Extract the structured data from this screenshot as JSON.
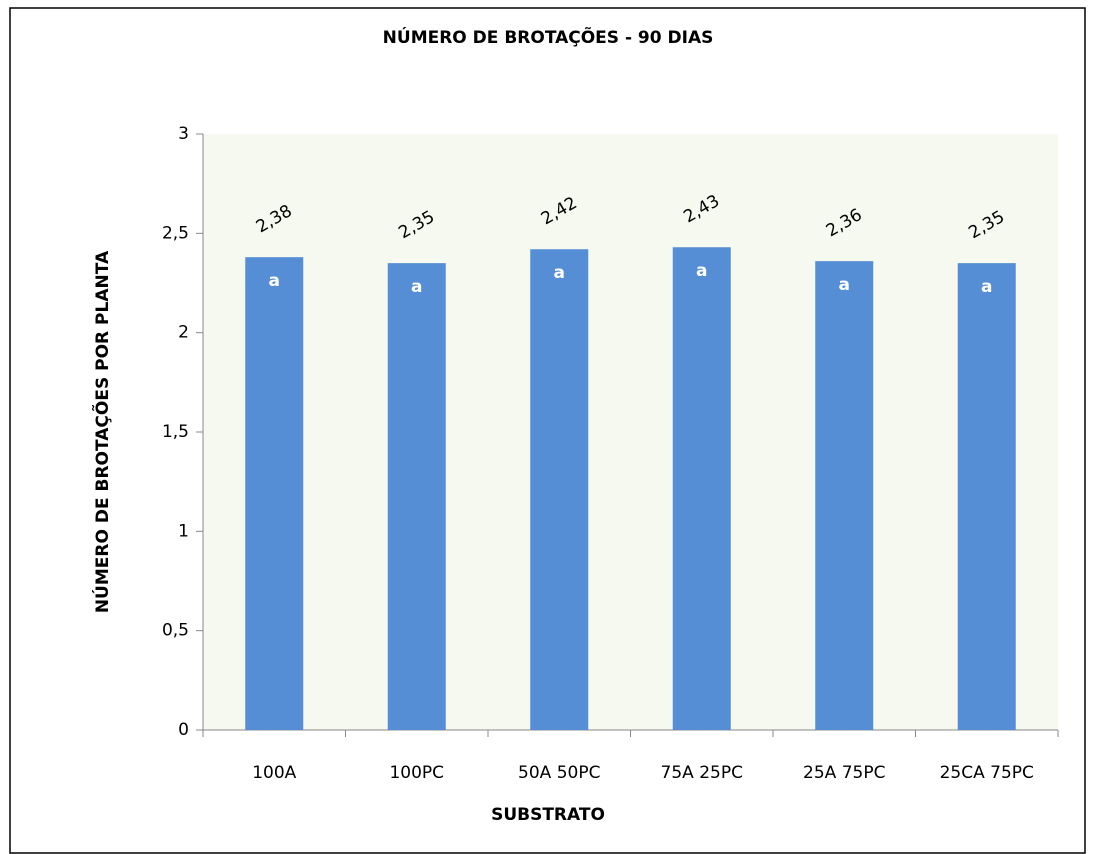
{
  "chart_data": {
    "type": "bar",
    "title": "NÚMERO DE BROTAÇÕES - 90 DIAS",
    "x_label": "SUBSTRATO",
    "y_label": "NÚMERO DE BROTAÇÕES POR PLANTA",
    "categories": [
      "100A",
      "100PC",
      "50A 50PC",
      "75A 25PC",
      "25A 75PC",
      "25CA 75PC"
    ],
    "values": [
      2.38,
      2.35,
      2.42,
      2.43,
      2.36,
      2.35
    ],
    "value_labels": [
      "2,38",
      "2,35",
      "2,42",
      "2,43",
      "2,36",
      "2,35"
    ],
    "bar_annotations": [
      "a",
      "a",
      "a",
      "a",
      "a",
      "a"
    ],
    "color": "#558ed5",
    "ylim": [
      0,
      3
    ],
    "yticks": [
      0,
      {
        "value": 0.5,
        "label": "0,5"
      },
      1,
      {
        "value": 1.5,
        "label": "1,5"
      },
      2,
      {
        "value": 2.5,
        "label": "2,5"
      },
      3
    ],
    "grid": false
  }
}
